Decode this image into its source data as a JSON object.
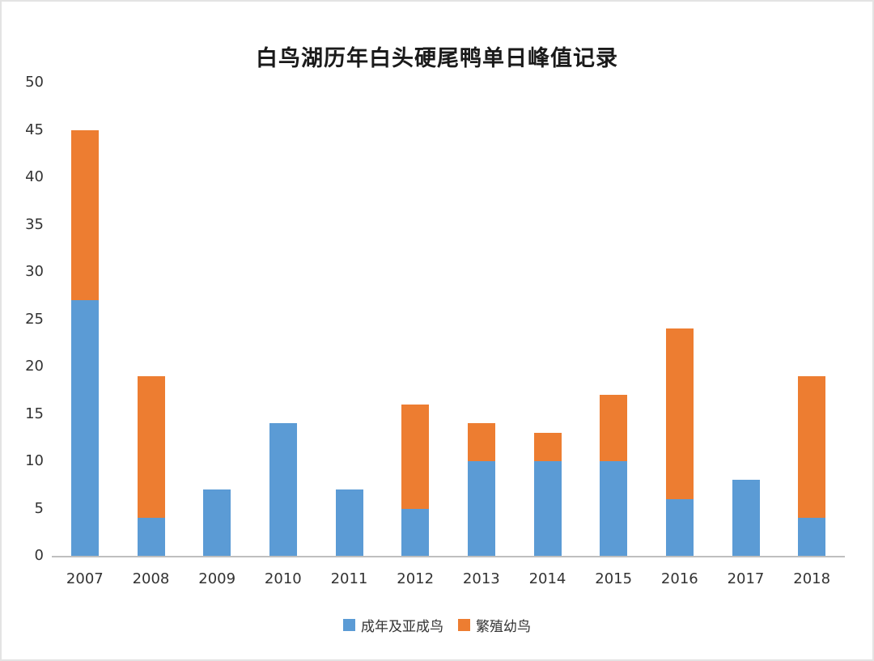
{
  "chart_data": {
    "type": "bar",
    "stacked": true,
    "title": "白鸟湖历年白头硬尾鸭单日峰值记录",
    "categories": [
      "2007",
      "2008",
      "2009",
      "2010",
      "2011",
      "2012",
      "2013",
      "2014",
      "2015",
      "2016",
      "2017",
      "2018"
    ],
    "series": [
      {
        "name": "成年及亚成鸟",
        "color": "#5B9BD5",
        "values": [
          27,
          4,
          7,
          14,
          7,
          5,
          10,
          10,
          10,
          6,
          8,
          4
        ]
      },
      {
        "name": "繁殖幼鸟",
        "color": "#ED7D31",
        "values": [
          18,
          15,
          0,
          0,
          0,
          11,
          4,
          3,
          7,
          18,
          0,
          15
        ]
      }
    ],
    "totals": [
      45,
      19,
      7,
      14,
      7,
      16,
      14,
      13,
      17,
      24,
      8,
      19
    ],
    "xlabel": "",
    "ylabel": "",
    "ylim": [
      0,
      50
    ],
    "yticks": [
      0,
      5,
      10,
      15,
      20,
      25,
      30,
      35,
      40,
      45,
      50
    ],
    "grid": false,
    "legend_position": "bottom",
    "axis_line_color": "#BFBFBF",
    "text_color": "#333333"
  }
}
